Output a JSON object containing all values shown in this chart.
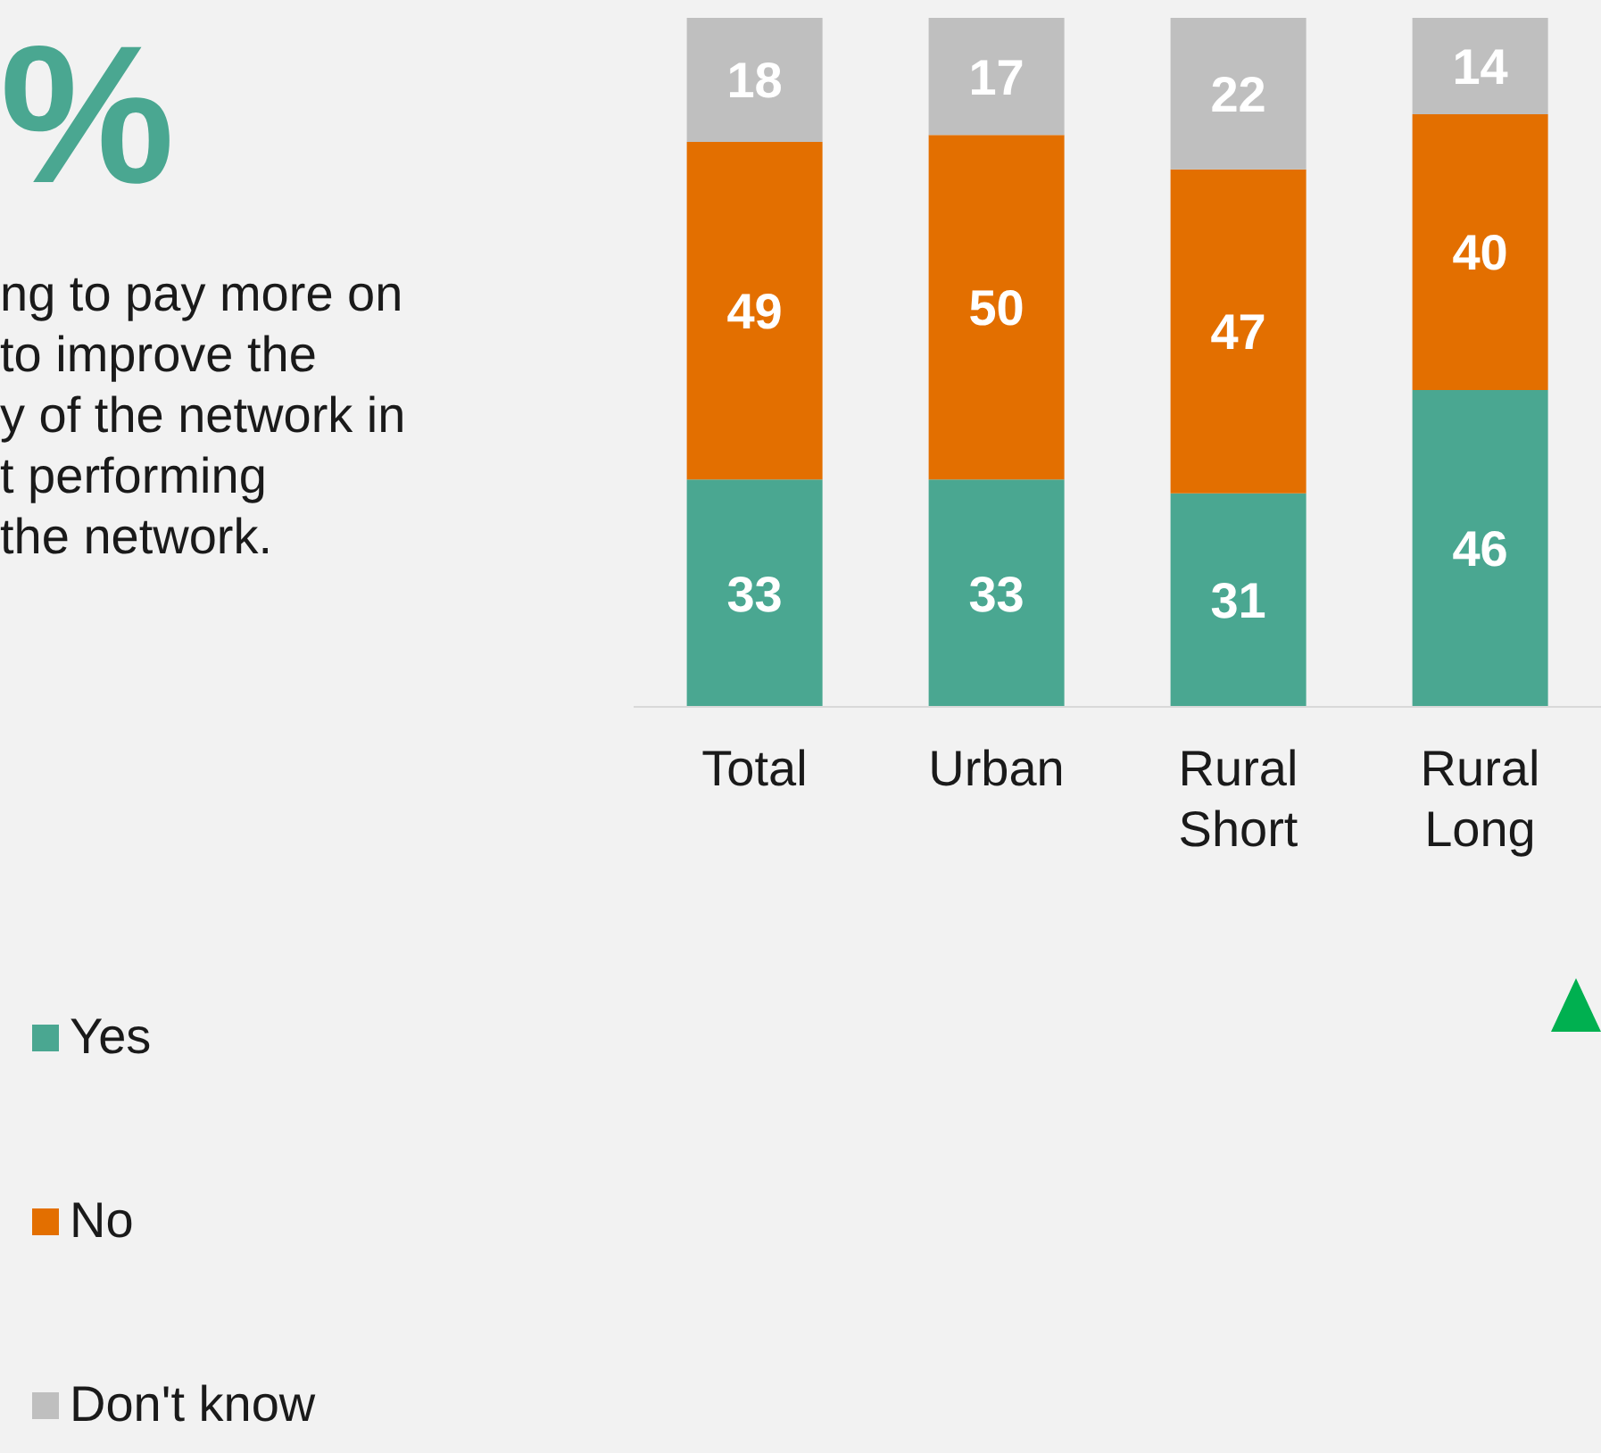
{
  "chart_data": {
    "type": "bar",
    "title": "%",
    "annotations": [
      "ng to pay more on",
      "to improve the",
      "y of the network in",
      "t performing",
      "the network."
    ],
    "categories": [
      "Total",
      "Urban",
      "Rural Short",
      "Rural Long"
    ],
    "series": [
      {
        "name": "Yes",
        "color": "#4aa791",
        "values": [
          33,
          33,
          31,
          46
        ]
      },
      {
        "name": "No",
        "color": "#e36f00",
        "values": [
          49,
          50,
          47,
          40
        ]
      },
      {
        "name": "Don't know",
        "color": "#bfbfbf",
        "values": [
          18,
          17,
          22,
          14
        ]
      }
    ],
    "stacked": true,
    "data_labels": true,
    "legend": "left",
    "grid": false
  }
}
